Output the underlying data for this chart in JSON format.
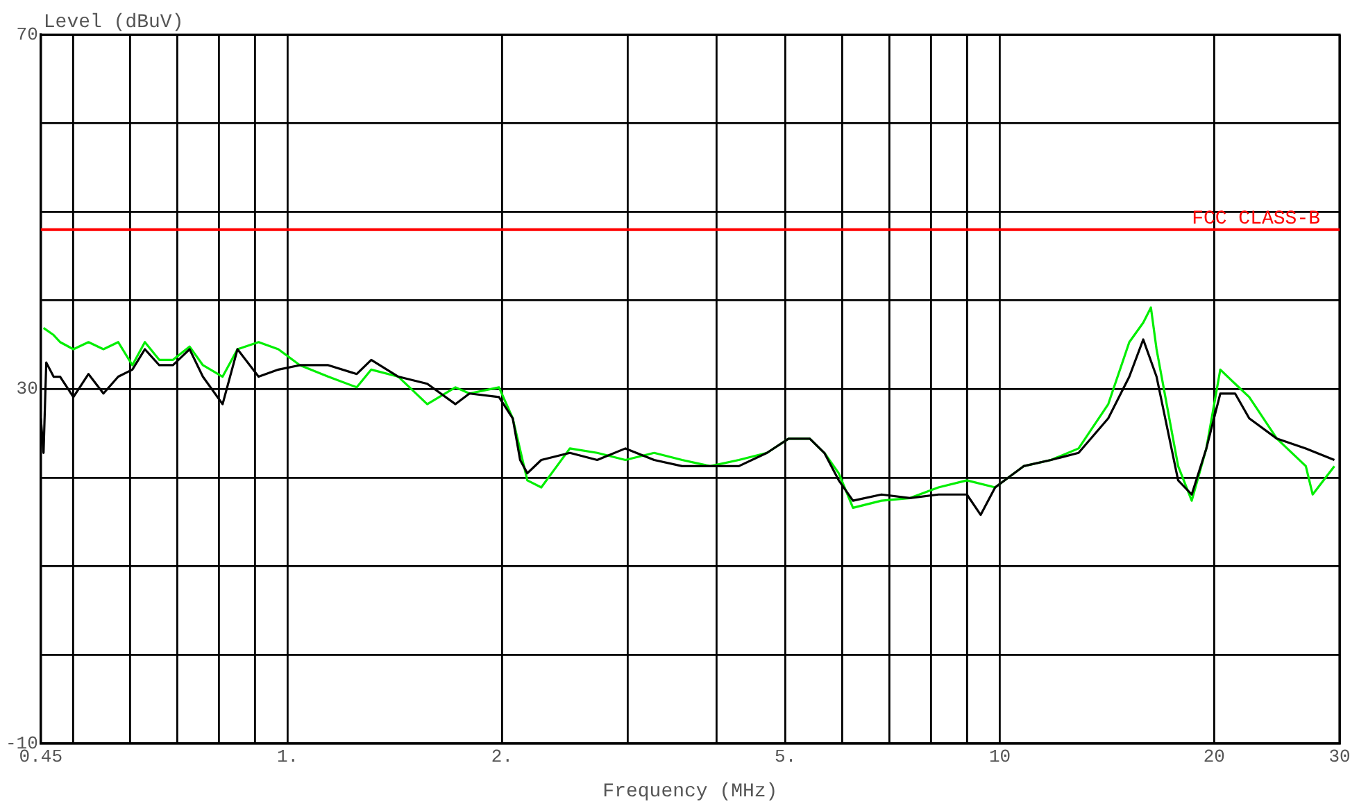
{
  "chart_data": {
    "type": "line",
    "xlabel": "Frequency (MHz)",
    "ylabel": "Level (dBuV)",
    "log": "x",
    "grid": true,
    "legend": false,
    "marker": "none",
    "line_style": "solid",
    "xlim": [
      0.45,
      30
    ],
    "ylim": [
      -10,
      70
    ],
    "xticks": [
      0.45,
      {
        "value": 0.5,
        "label": null
      },
      {
        "value": 0.6,
        "label": null
      },
      {
        "value": 0.7,
        "label": null
      },
      {
        "value": 0.8,
        "label": null
      },
      {
        "value": 0.9,
        "label": null
      },
      {
        "value": 1,
        "label": "1."
      },
      {
        "value": 2,
        "label": "2."
      },
      {
        "value": 3,
        "label": null
      },
      {
        "value": 4,
        "label": null
      },
      {
        "value": 5,
        "label": "5."
      },
      {
        "value": 6,
        "label": null
      },
      {
        "value": 7,
        "label": null
      },
      {
        "value": 8,
        "label": null
      },
      {
        "value": 9,
        "label": null
      },
      10,
      20,
      30
    ],
    "yticks": [
      -10,
      {
        "value": 0,
        "label": null
      },
      {
        "value": 10,
        "label": null
      },
      {
        "value": 20,
        "label": null
      },
      30,
      {
        "value": 40,
        "label": null
      },
      {
        "value": 50,
        "label": null
      },
      {
        "value": 60,
        "label": null
      },
      70
    ],
    "ref_lines": [
      {
        "axis": "y",
        "value": 48,
        "label": "FCC CLASS-B",
        "color": "#ff0000"
      }
    ],
    "series": [
      {
        "color": "#00ee00",
        "x": [
          0.454,
          0.469,
          0.479,
          0.5,
          0.525,
          0.551,
          0.578,
          0.605,
          0.63,
          0.66,
          0.69,
          0.728,
          0.76,
          0.81,
          0.85,
          0.91,
          0.97,
          1.04,
          1.14,
          1.25,
          1.31,
          1.43,
          1.57,
          1.72,
          1.8,
          1.98,
          2.07,
          2.17,
          2.27,
          2.49,
          2.72,
          2.98,
          3.27,
          3.58,
          3.92,
          4.3,
          4.71,
          5.05,
          5.41,
          5.67,
          5.94,
          6.22,
          6.82,
          7.48,
          8.2,
          8.99,
          9.85,
          10.8,
          11.8,
          12.9,
          14.2,
          15.2,
          15.9,
          16.3,
          16.6,
          17.8,
          18.6,
          19.5,
          20.4,
          21.4,
          22.4,
          24.5,
          26.9,
          27.5,
          29.5
        ],
        "values": [
          36.9,
          36.1,
          35.3,
          34.5,
          35.3,
          34.5,
          35.3,
          32.7,
          35.3,
          33.3,
          33.3,
          34.8,
          32.7,
          31.4,
          34.5,
          35.3,
          34.5,
          32.7,
          31.4,
          30.2,
          32.2,
          31.4,
          28.3,
          30.2,
          29.5,
          30.2,
          26.7,
          19.7,
          18.9,
          23.3,
          22.8,
          22,
          22.8,
          22,
          21.3,
          22,
          22.8,
          24.4,
          24.4,
          22.8,
          20.5,
          16.6,
          17.4,
          17.7,
          18.9,
          19.7,
          18.9,
          21.3,
          22,
          23.3,
          28.3,
          35.3,
          37.5,
          39.2,
          34.5,
          21.3,
          17.4,
          23.3,
          32.2,
          30.6,
          29.1,
          24.4,
          21.3,
          18.1,
          21.3
        ]
      },
      {
        "color": "#000000",
        "x": [
          0.45,
          0.454,
          0.458,
          0.469,
          0.479,
          0.5,
          0.525,
          0.551,
          0.578,
          0.605,
          0.63,
          0.66,
          0.69,
          0.728,
          0.76,
          0.81,
          0.85,
          0.91,
          0.97,
          1.04,
          1.14,
          1.25,
          1.31,
          1.43,
          1.57,
          1.72,
          1.8,
          1.98,
          2.07,
          2.12,
          2.17,
          2.27,
          2.49,
          2.72,
          2.98,
          3.27,
          3.58,
          3.92,
          4.3,
          4.71,
          5.05,
          5.41,
          5.67,
          5.94,
          6.22,
          6.82,
          7.48,
          8.2,
          8.99,
          9.4,
          9.85,
          10.8,
          11.8,
          12.9,
          14.2,
          15.2,
          15.9,
          16.6,
          17.8,
          18.6,
          19.5,
          20.4,
          21.4,
          22.4,
          24.5,
          26.9,
          29.5
        ],
        "values": [
          26.7,
          22.8,
          33,
          31.4,
          31.4,
          29.1,
          31.7,
          29.5,
          31.4,
          32.2,
          34.5,
          32.7,
          32.7,
          34.5,
          31.4,
          28.3,
          34.5,
          31.4,
          32.2,
          32.7,
          32.7,
          31.7,
          33.3,
          31.4,
          30.6,
          28.3,
          29.5,
          29.1,
          26.7,
          22,
          20.5,
          22,
          22.8,
          22,
          23.3,
          22,
          21.3,
          21.3,
          21.3,
          22.8,
          24.4,
          24.4,
          22.8,
          19.7,
          17.4,
          18.1,
          17.7,
          18.1,
          18.1,
          15.8,
          18.9,
          21.3,
          22,
          22.8,
          26.7,
          31.4,
          35.6,
          31.4,
          19.7,
          18.1,
          23.3,
          29.5,
          29.5,
          26.7,
          24.4,
          23.3,
          22
        ]
      }
    ]
  }
}
